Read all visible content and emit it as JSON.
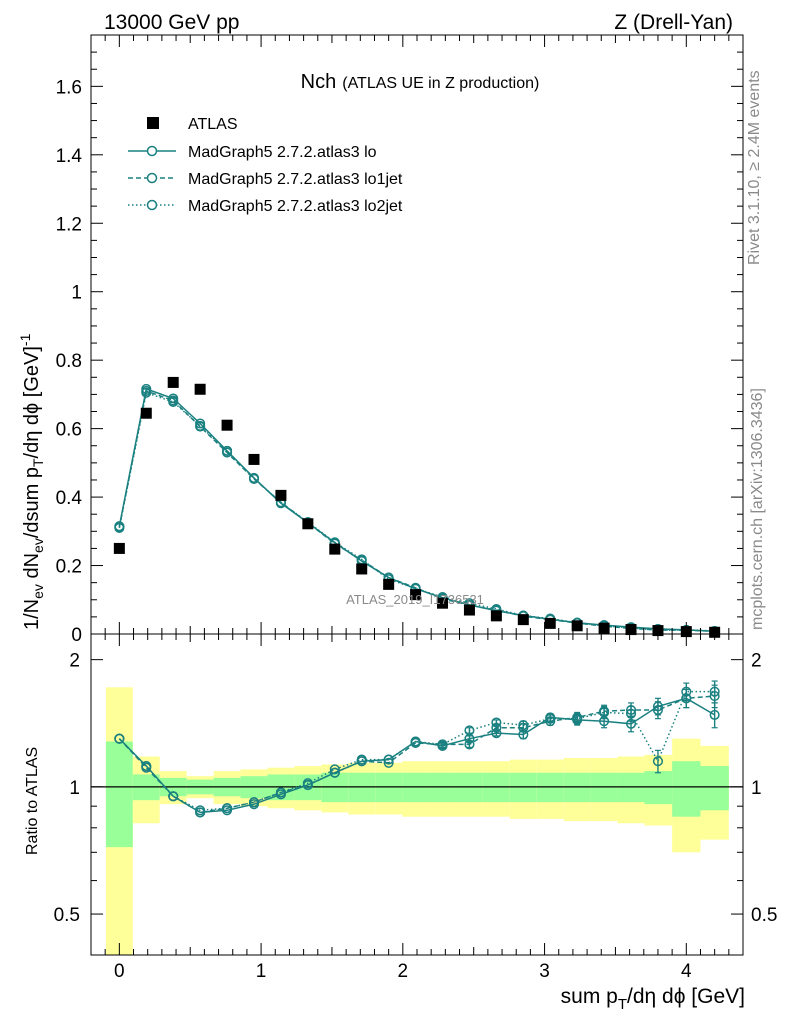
{
  "header": {
    "left": "13000 GeV pp",
    "right": "Z (Drell-Yan)"
  },
  "side": {
    "rivet": "Rivet 3.1.10, ≥ 2.4M events",
    "mcplots": "mcplots.cern.ch [arXiv:1306.3436]"
  },
  "watermark": "ATLAS_2019_I1736531",
  "chart_data": {
    "type": "scatter",
    "title": "Nch",
    "subtitle": "(ATLAS UE in Z production)",
    "ylabel_parts": {
      "a": "1/N",
      "a_sub": "ev",
      "b": " dN",
      "b_sub": "ev",
      "c": "/dsum p",
      "c_sub": "T",
      "d": "/dη dϕ  [GeV]",
      "d_sup": "-1"
    },
    "xlabel_parts": {
      "a": "sum p",
      "a_sub": "T",
      "b": "/dη dϕ [GeV]"
    },
    "ratio_ylabel": "Ratio to ATLAS",
    "xlim": [
      -0.2,
      4.4
    ],
    "ylim": [
      0,
      1.75
    ],
    "ratio_ylim": [
      0.4,
      2.3
    ],
    "x_ticks": [
      0,
      1,
      2,
      3,
      4
    ],
    "y_ticks": [
      0,
      0.2,
      0.4,
      0.6,
      0.8,
      1,
      1.2,
      1.4,
      1.6
    ],
    "y_tick_labels": [
      "0",
      "0.2",
      "0.4",
      "0.6",
      "0.8",
      "1",
      "1.2",
      "1.4",
      "1.6"
    ],
    "ratio_ticks": [
      0.5,
      1,
      2
    ],
    "ratio_tick_labels": [
      "0.5",
      "1",
      "2"
    ],
    "legend_position": "top-left",
    "x": [
      0.0,
      0.19,
      0.38,
      0.57,
      0.76,
      0.95,
      1.14,
      1.33,
      1.52,
      1.71,
      1.9,
      2.09,
      2.28,
      2.47,
      2.66,
      2.85,
      3.04,
      3.23,
      3.42,
      3.61,
      3.8,
      4.0,
      4.2
    ],
    "data": {
      "name": "ATLAS",
      "values": [
        0.25,
        0.645,
        0.735,
        0.715,
        0.61,
        0.51,
        0.405,
        0.322,
        0.248,
        0.19,
        0.145,
        0.115,
        0.09,
        0.07,
        0.053,
        0.042,
        0.031,
        0.024,
        0.017,
        0.013,
        0.01,
        0.007,
        0.005
      ],
      "band_inner": [
        0.28,
        0.07,
        0.05,
        0.04,
        0.05,
        0.06,
        0.07,
        0.07,
        0.08,
        0.08,
        0.08,
        0.08,
        0.08,
        0.08,
        0.08,
        0.08,
        0.08,
        0.08,
        0.08,
        0.08,
        0.09,
        0.15,
        0.12
      ],
      "band_outer": [
        0.72,
        0.18,
        0.09,
        0.06,
        0.09,
        0.1,
        0.11,
        0.12,
        0.13,
        0.14,
        0.14,
        0.15,
        0.15,
        0.15,
        0.15,
        0.16,
        0.16,
        0.17,
        0.17,
        0.18,
        0.19,
        0.3,
        0.25
      ]
    },
    "series": [
      {
        "name": "MadGraph5 2.7.2.atlas3 lo",
        "style": "solid",
        "values": [
          0.315,
          0.716,
          0.688,
          0.615,
          0.535,
          0.456,
          0.382,
          0.325,
          0.267,
          0.213,
          0.165,
          0.132,
          0.106,
          0.085,
          0.068,
          0.054,
          0.043,
          0.033,
          0.026,
          0.02,
          0.015,
          0.012,
          0.008
        ],
        "ratio": [
          1.3,
          1.12,
          0.95,
          0.87,
          0.88,
          0.91,
          0.96,
          1.01,
          1.08,
          1.15,
          1.16,
          1.28,
          1.25,
          1.3,
          1.34,
          1.33,
          1.46,
          1.44,
          1.43,
          1.41,
          1.55,
          1.62,
          1.48
        ],
        "ratio_err": [
          0.01,
          0.01,
          0.01,
          0.01,
          0.01,
          0.01,
          0.01,
          0.01,
          0.01,
          0.01,
          0.01,
          0.01,
          0.02,
          0.02,
          0.02,
          0.03,
          0.03,
          0.04,
          0.05,
          0.06,
          0.07,
          0.08,
          0.1
        ]
      },
      {
        "name": "MadGraph5 2.7.2.atlas3 lo1jet",
        "style": "dashed",
        "values": [
          0.312,
          0.71,
          0.682,
          0.606,
          0.53,
          0.453,
          0.385,
          0.325,
          0.264,
          0.216,
          0.165,
          0.135,
          0.103,
          0.084,
          0.07,
          0.052,
          0.042,
          0.032,
          0.023,
          0.016,
          0.012,
          0.011,
          0.008
        ],
        "ratio": [
          1.3,
          1.11,
          0.95,
          0.87,
          0.89,
          0.92,
          0.97,
          1.01,
          1.08,
          1.15,
          1.14,
          1.27,
          1.26,
          1.26,
          1.38,
          1.38,
          1.43,
          1.46,
          1.51,
          1.52,
          1.52,
          1.62,
          1.64
        ],
        "ratio_err": [
          0.01,
          0.01,
          0.01,
          0.01,
          0.01,
          0.01,
          0.01,
          0.01,
          0.01,
          0.01,
          0.01,
          0.01,
          0.02,
          0.02,
          0.02,
          0.03,
          0.03,
          0.04,
          0.05,
          0.06,
          0.07,
          0.08,
          0.1
        ]
      },
      {
        "name": "MadGraph5 2.7.2.atlas3 lo2jet",
        "style": "dotted",
        "values": [
          0.31,
          0.705,
          0.678,
          0.608,
          0.535,
          0.455,
          0.384,
          0.327,
          0.268,
          0.218,
          0.16,
          0.133,
          0.108,
          0.09,
          0.073,
          0.054,
          0.045,
          0.033,
          0.024,
          0.018,
          0.011,
          0.012,
          0.009
        ],
        "ratio": [
          1.3,
          1.12,
          0.95,
          0.88,
          0.89,
          0.92,
          0.97,
          1.02,
          1.1,
          1.16,
          1.16,
          1.28,
          1.26,
          1.36,
          1.42,
          1.4,
          1.45,
          1.45,
          1.5,
          1.49,
          1.15,
          1.68,
          1.68
        ],
        "ratio_err": [
          0.01,
          0.01,
          0.01,
          0.01,
          0.01,
          0.01,
          0.01,
          0.01,
          0.01,
          0.01,
          0.01,
          0.01,
          0.02,
          0.02,
          0.02,
          0.03,
          0.03,
          0.04,
          0.05,
          0.06,
          0.07,
          0.08,
          0.1
        ]
      }
    ],
    "colors": {
      "mc": "#1a8080",
      "inner_band": "#99ff99",
      "outer_band": "#ffff99",
      "data": "#000000"
    }
  }
}
